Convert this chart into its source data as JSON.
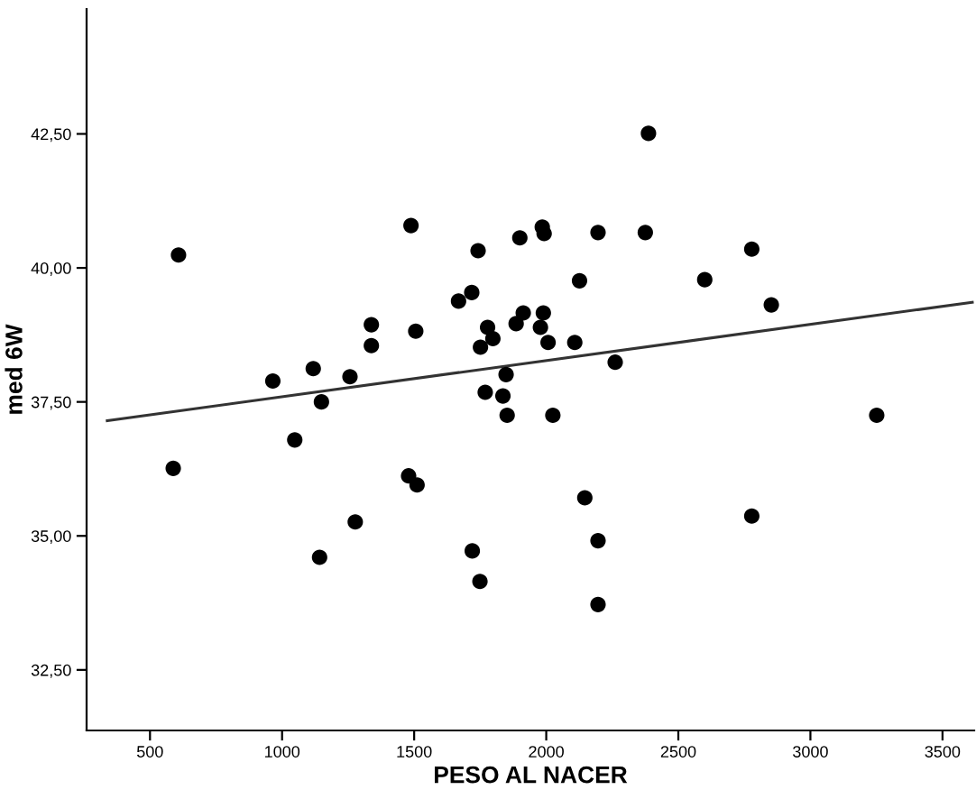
{
  "chart_data": {
    "type": "scatter",
    "xlabel": "PESO AL NACER",
    "ylabel": "med 6W",
    "xlim": [
      260,
      3620
    ],
    "ylim": [
      31.37,
      44.83
    ],
    "xticks": [
      500,
      1000,
      1500,
      2000,
      2500,
      3000,
      3500
    ],
    "yticks": [
      {
        "value": 32.5,
        "label": "32,50"
      },
      {
        "value": 35,
        "label": "35,00"
      },
      {
        "value": 37.5,
        "label": "37,50"
      },
      {
        "value": 40,
        "label": "40,00"
      },
      {
        "value": 42.5,
        "label": "42,50"
      }
    ],
    "grid": false,
    "marker": "circle",
    "series": [
      {
        "color": "#000000",
        "x": [
          608,
          1488,
          1742,
          1900,
          1668,
          1718,
          1338,
          1506,
          1778,
          1913,
          1338,
          1751,
          1798,
          965,
          1118,
          1257,
          1149,
          1848,
          1769,
          1836,
          1852,
          1048,
          588,
          1142,
          1277,
          1479,
          1511,
          1720,
          1749,
          2387,
          1985,
          1992,
          2196,
          2375,
          2778,
          2126,
          2600,
          2852,
          1886,
          1989,
          1978,
          2007,
          2108,
          2261,
          2025,
          3251,
          2146,
          2778,
          2196,
          2196
        ],
        "values": [
          40.24,
          40.79,
          40.32,
          40.56,
          39.38,
          39.54,
          38.94,
          38.82,
          38.89,
          39.16,
          38.55,
          38.52,
          38.68,
          37.89,
          38.12,
          37.97,
          37.5,
          38.01,
          37.68,
          37.61,
          37.25,
          36.79,
          36.26,
          34.6,
          35.26,
          36.12,
          35.95,
          34.72,
          34.15,
          42.51,
          40.76,
          40.64,
          40.66,
          40.66,
          40.35,
          39.76,
          39.78,
          39.31,
          38.96,
          39.16,
          38.89,
          38.61,
          38.61,
          38.24,
          37.25,
          37.25,
          35.71,
          35.37,
          34.91,
          33.72
        ]
      },
      {
        "type": "line",
        "color": "#333333",
        "marker": "none",
        "x": [
          338,
          3613
        ],
        "values": [
          37.15,
          39.36
        ]
      }
    ]
  }
}
